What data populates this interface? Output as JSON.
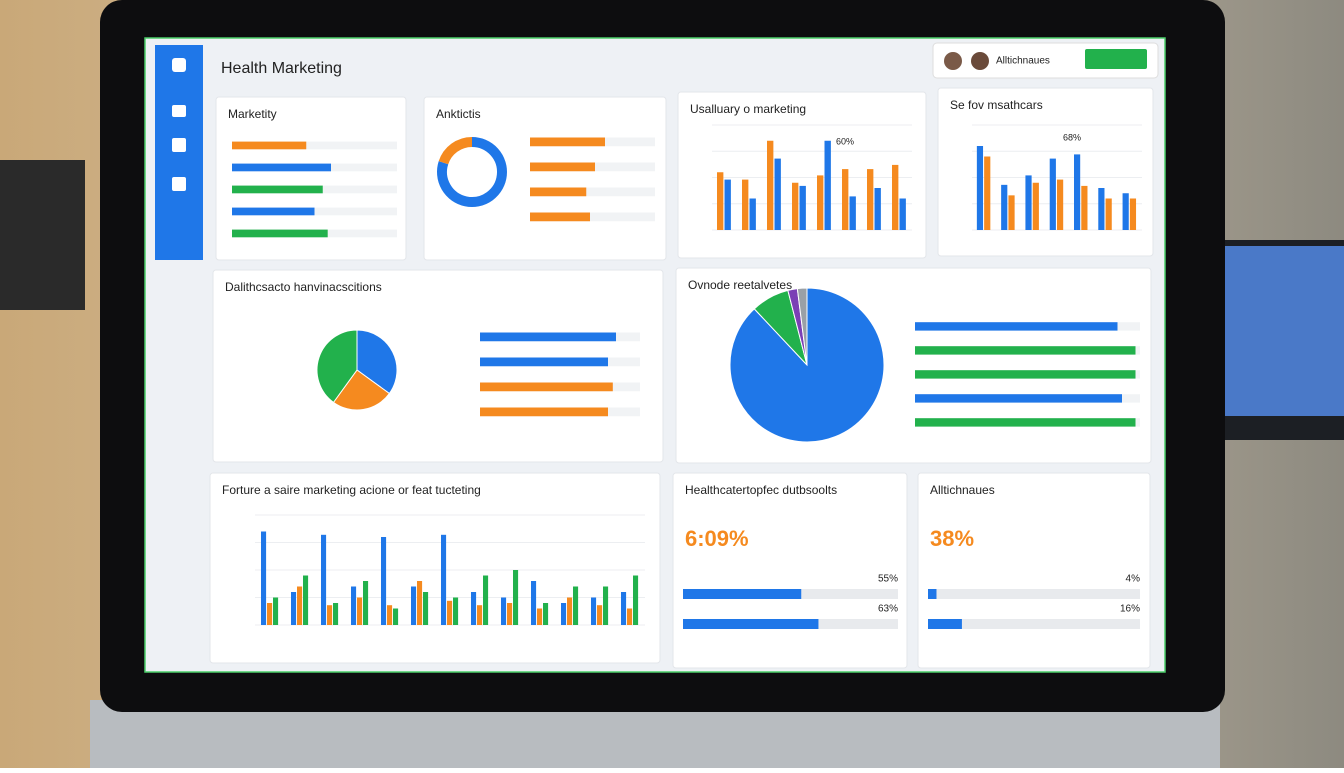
{
  "header": {
    "title": "Health Marketing",
    "user": "Alltichnaues"
  },
  "panels": [
    {
      "title": "Marketity",
      "charts": [
        {
          "type": "hbars",
          "values": [
            45,
            60,
            55,
            50,
            58
          ],
          "colors": [
            "#f58a1f",
            "#1f77e8",
            "#22b14c",
            "#1f77e8",
            "#22b14c"
          ],
          "xlim": [
            0,
            100
          ]
        }
      ]
    },
    {
      "title": "Anktictis",
      "charts": [
        {
          "type": "donut",
          "values": [
            80,
            20
          ],
          "colors": [
            "#1f77e8",
            "#f58a1f"
          ]
        },
        {
          "type": "hbars",
          "values": [
            60,
            52,
            45,
            48
          ],
          "colors": [
            "#f58a1f",
            "#f58a1f",
            "#f58a1f",
            "#f58a1f"
          ],
          "xlim": [
            0,
            100
          ]
        }
      ]
    },
    {
      "title": "Usalluary o marketing",
      "annotation": "60%",
      "charts": [
        {
          "type": "grouped",
          "ylim": [
            0,
            100
          ],
          "series": [
            {
              "color": "#f58a1f",
              "values": [
                55,
                48,
                85,
                45,
                52,
                58,
                58,
                62
              ]
            },
            {
              "color": "#1f77e8",
              "values": [
                48,
                30,
                68,
                42,
                85,
                32,
                40,
                30
              ]
            }
          ]
        }
      ]
    },
    {
      "title": "Se fov msathcars",
      "annotation": "68%",
      "charts": [
        {
          "type": "grouped",
          "ylim": [
            0,
            100
          ],
          "series": [
            {
              "color": "#1f77e8",
              "values": [
                80,
                43,
                52,
                68,
                72,
                40,
                35
              ]
            },
            {
              "color": "#f58a1f",
              "values": [
                70,
                33,
                45,
                48,
                42,
                30,
                30
              ]
            }
          ]
        }
      ]
    },
    {
      "title": "Dalithcsacto hanvinacscitions",
      "charts": [
        {
          "type": "pie",
          "values": [
            35,
            25,
            40
          ],
          "colors": [
            "#1f77e8",
            "#f58a1f",
            "#22b14c"
          ]
        },
        {
          "type": "hbars",
          "values": [
            85,
            80,
            83,
            80
          ],
          "colors": [
            "#1f77e8",
            "#1f77e8",
            "#f58a1f",
            "#f58a1f"
          ],
          "xlim": [
            0,
            100
          ]
        }
      ]
    },
    {
      "title": "Ovnode reetalvetes",
      "charts": [
        {
          "type": "pie",
          "values": [
            88,
            8,
            2,
            2
          ],
          "colors": [
            "#1f77e8",
            "#22b14c",
            "#7b3fb5",
            "#9aa0a6"
          ]
        },
        {
          "type": "hbars",
          "values": [
            90,
            98,
            98,
            92,
            98
          ],
          "colors": [
            "#1f77e8",
            "#22b14c",
            "#22b14c",
            "#1f77e8",
            "#22b14c"
          ],
          "xlim": [
            0,
            100
          ]
        }
      ]
    },
    {
      "title": "Forture a saire marketing acione or feat tucteting",
      "charts": [
        {
          "type": "grouped",
          "ylim": [
            0,
            100
          ],
          "series": [
            {
              "color": "#1f77e8",
              "values": [
                85,
                30,
                82,
                35,
                80,
                35,
                82,
                30,
                25,
                40,
                20,
                25,
                30
              ]
            },
            {
              "color": "#f58a1f",
              "values": [
                20,
                35,
                18,
                25,
                18,
                40,
                22,
                18,
                20,
                15,
                25,
                18,
                15
              ]
            },
            {
              "color": "#22b14c",
              "values": [
                25,
                45,
                20,
                40,
                15,
                30,
                25,
                45,
                50,
                20,
                35,
                35,
                45
              ]
            }
          ]
        }
      ]
    },
    {
      "title": "Healthcatertopfec dutbsoolts",
      "kpi": "6:09%",
      "charts": [
        {
          "type": "progress",
          "values": [
            55,
            63
          ],
          "value_labels": [
            "55%",
            "63%"
          ],
          "color": "#1f77e8",
          "xlim": [
            0,
            100
          ]
        }
      ]
    },
    {
      "title": "Alltichnaues",
      "kpi": "38%",
      "charts": [
        {
          "type": "progress",
          "values": [
            4,
            16
          ],
          "value_labels": [
            "4%",
            "16%"
          ],
          "color": "#1f77e8",
          "xlim": [
            0,
            100
          ]
        }
      ]
    }
  ]
}
